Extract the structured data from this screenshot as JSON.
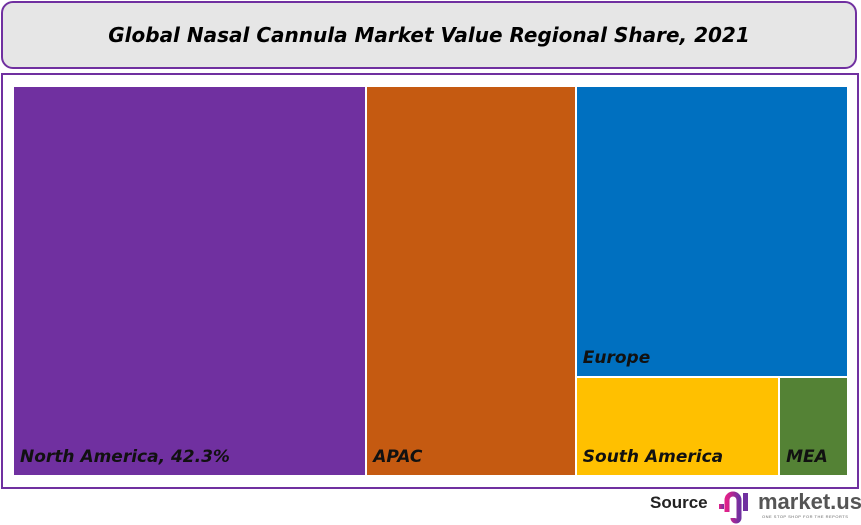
{
  "chart_data": {
    "type": "treemap",
    "title": "Global Nasal Cannula Market Value Regional Share, 2021",
    "unit": "%",
    "items": [
      {
        "name": "North America",
        "value": 42.3,
        "label": "North America, 42.3%",
        "color": "#7030a0"
      },
      {
        "name": "APAC",
        "value": 25.1,
        "label": "APAC",
        "color": "#c55a11"
      },
      {
        "name": "Europe",
        "value": 24.3,
        "label": "Europe",
        "color": "#0070c0"
      },
      {
        "name": "South America",
        "value": 6.2,
        "label": "South America",
        "color": "#ffc000"
      },
      {
        "name": "MEA",
        "value": 2.1,
        "label": "MEA",
        "color": "#548235"
      }
    ]
  },
  "footer": {
    "source_label": "Source",
    "brand": "market.us",
    "tagline": "ONE STOP SHOP FOR THE REPORTS"
  },
  "colors": {
    "frame": "#7030a0",
    "title_bg": "#e6e6e6"
  }
}
